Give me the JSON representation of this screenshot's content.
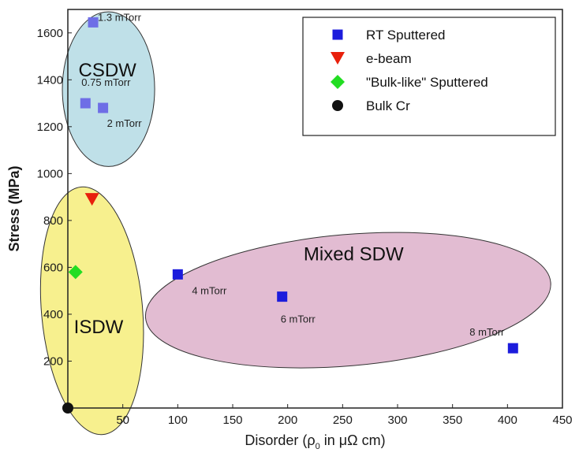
{
  "chart_data": {
    "type": "scatter",
    "title": "",
    "xlabel_parts": {
      "prefix": "Disorder (",
      "rho": "ρ",
      "sub": "0",
      "suffix": " in μΩ cm)"
    },
    "ylabel": "Stress (MPa)",
    "xlim": [
      0,
      450
    ],
    "ylim": [
      0,
      1700
    ],
    "xticks": [
      "50",
      "100",
      "150",
      "200",
      "250",
      "300",
      "350",
      "400",
      "450"
    ],
    "yticks": [
      "200",
      "400",
      "600",
      "800",
      "1000",
      "1200",
      "1400",
      "1600"
    ],
    "grid": false,
    "legend_position": "top-right",
    "series": [
      {
        "name": "RT Sputtered",
        "marker": "square",
        "color": "#1c1cdc",
        "points": [
          {
            "x": 100,
            "y": 570,
            "label": "4 mTorr"
          },
          {
            "x": 195,
            "y": 475,
            "label": "6 mTorr"
          },
          {
            "x": 405,
            "y": 255,
            "label": "8 mTorr"
          }
        ]
      },
      {
        "name": "e-beam",
        "marker": "triangle-down",
        "color": "#e8200c",
        "points": [
          {
            "x": 22,
            "y": 890
          }
        ]
      },
      {
        "name": "\"Bulk-like\" Sputtered",
        "marker": "diamond",
        "color": "#22dd22",
        "points": [
          {
            "x": 7,
            "y": 580
          }
        ]
      },
      {
        "name": "Bulk Cr",
        "marker": "circle",
        "color": "#111111",
        "points": [
          {
            "x": 0,
            "y": 0
          }
        ]
      }
    ],
    "low_contrast_points": [
      {
        "x": 23,
        "y": 1645,
        "label": "1.3 mTorr",
        "color": "#6e6ee6"
      },
      {
        "x": 16,
        "y": 1300,
        "label": "0.75 mTorr",
        "color": "#6e6ee6"
      },
      {
        "x": 32,
        "y": 1280,
        "label": "2 mTorr",
        "color": "#6e6ee6"
      }
    ],
    "regions": [
      {
        "label": "CSDW",
        "color": "#bfe0e8",
        "cx": 37,
        "cy": 1360,
        "rx": 42,
        "ry": 330,
        "angle": 0
      },
      {
        "label": "ISDW",
        "color": "#f7f08e",
        "cx": 22,
        "cy": 415,
        "rx": 46,
        "ry": 530,
        "angle": -5
      },
      {
        "label": "Mixed SDW",
        "color": "#e2bcd2",
        "cx": 255,
        "cy": 460,
        "rx": 185,
        "ry": 280,
        "angle": -5
      }
    ]
  }
}
